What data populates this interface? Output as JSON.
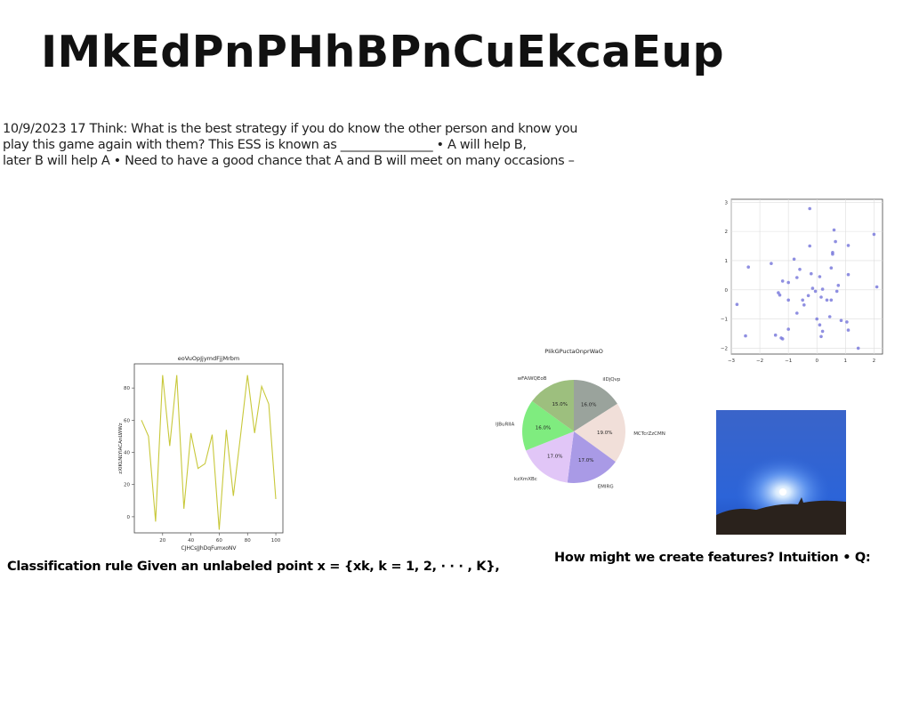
{
  "title": "IMkEdPnPHhBPnCuEkcaEup",
  "body_lines": [
    "10/9/2023 17 Think: What is the best strategy if you do know the other person and know you",
    "play this game again with them? This ESS is known as _______________ • A will help B,",
    "later B will help A • Need to have a good chance that A and B will meet on many occasions –"
  ],
  "captions": {
    "left": "Classification rule Given an unlabeled point x = {xk, k = 1, 2, · · · , K},",
    "right": "How might we create features? Intuition • Q:"
  },
  "photo": {
    "sky_color": "#2c64d8",
    "glow_color": "#ffffff",
    "ground_color": "#2a221c"
  },
  "chart_data": [
    {
      "type": "line",
      "title": "eoVuOpJjymdFjjMrbm",
      "xlabel": "CJHCsJJhDqFumxoNV",
      "ylabel": "zXIKLNLYlACAnLWWz",
      "color": "#c8c83a",
      "x": [
        5,
        10,
        15,
        20,
        25,
        30,
        35,
        40,
        45,
        50,
        55,
        60,
        65,
        70,
        75,
        80,
        85,
        90,
        95,
        100
      ],
      "y": [
        60,
        50,
        -3,
        88,
        44,
        88,
        5,
        52,
        30,
        33,
        51,
        -8,
        54,
        13,
        50,
        88,
        52,
        81,
        70,
        11
      ],
      "xlim": [
        0,
        105
      ],
      "ylim": [
        -10,
        95
      ],
      "xticks": [
        20,
        40,
        60,
        80,
        100
      ],
      "yticks": [
        0,
        20,
        40,
        60,
        80
      ]
    },
    {
      "type": "pie",
      "title": "PIikGPuctaOnprWaO",
      "slices": [
        {
          "label": "iIDjQvp",
          "value": 16.0,
          "pct": "16.0%",
          "color": "#9aa39c"
        },
        {
          "label": "MCTcrZzCMN",
          "value": 19.0,
          "pct": "19.0%",
          "color": "#f1dfd9"
        },
        {
          "label": "EMIRG",
          "value": 17.0,
          "pct": "17.0%",
          "color": "#a99ae6"
        },
        {
          "label": "kzXmXBc",
          "value": 17.0,
          "pct": "17.0%",
          "color": "#e1c6f7"
        },
        {
          "label": "IJBuRIIA",
          "value": 16.0,
          "pct": "16.0%",
          "color": "#7fec7f"
        },
        {
          "label": "wFAiWQEoB",
          "value": 15.0,
          "pct": "15.0%",
          "color": "#9dbf7e"
        }
      ]
    },
    {
      "type": "scatter",
      "color": "#7b7bdc",
      "xlim": [
        -3,
        2.3
      ],
      "ylim": [
        -2.2,
        3.1
      ],
      "xticks": [
        -3,
        -2,
        -1,
        0,
        1,
        2
      ],
      "yticks": [
        -2,
        -1,
        0,
        1,
        2,
        3
      ],
      "points": [
        [
          -0.25,
          2.78
        ],
        [
          0.6,
          2.05
        ],
        [
          2.0,
          1.9
        ],
        [
          0.65,
          1.65
        ],
        [
          1.1,
          1.52
        ],
        [
          -0.25,
          1.5
        ],
        [
          0.55,
          1.28
        ],
        [
          0.55,
          1.22
        ],
        [
          -0.8,
          1.05
        ],
        [
          -1.6,
          0.9
        ],
        [
          -2.4,
          0.78
        ],
        [
          0.5,
          0.75
        ],
        [
          -0.6,
          0.7
        ],
        [
          -0.2,
          0.55
        ],
        [
          1.1,
          0.52
        ],
        [
          0.1,
          0.45
        ],
        [
          -0.7,
          0.42
        ],
        [
          -1.2,
          0.3
        ],
        [
          -1.0,
          0.25
        ],
        [
          0.75,
          0.15
        ],
        [
          2.1,
          0.1
        ],
        [
          -0.15,
          0.05
        ],
        [
          0.2,
          0.02
        ],
        [
          -0.05,
          -0.05
        ],
        [
          0.7,
          -0.05
        ],
        [
          -1.35,
          -0.1
        ],
        [
          -1.3,
          -0.18
        ],
        [
          -0.3,
          -0.2
        ],
        [
          0.15,
          -0.25
        ],
        [
          -1.0,
          -0.35
        ],
        [
          -0.5,
          -0.35
        ],
        [
          0.35,
          -0.35
        ],
        [
          0.5,
          -0.35
        ],
        [
          -2.8,
          -0.5
        ],
        [
          -0.45,
          -0.52
        ],
        [
          -0.7,
          -0.8
        ],
        [
          0.45,
          -0.92
        ],
        [
          0.0,
          -1.0
        ],
        [
          0.85,
          -1.05
        ],
        [
          1.05,
          -1.1
        ],
        [
          0.1,
          -1.2
        ],
        [
          -1.0,
          -1.35
        ],
        [
          1.1,
          -1.38
        ],
        [
          0.2,
          -1.42
        ],
        [
          -1.45,
          -1.55
        ],
        [
          -2.5,
          -1.58
        ],
        [
          0.15,
          -1.6
        ],
        [
          -1.25,
          -1.65
        ],
        [
          -1.2,
          -1.68
        ],
        [
          1.45,
          -2.0
        ]
      ]
    }
  ]
}
